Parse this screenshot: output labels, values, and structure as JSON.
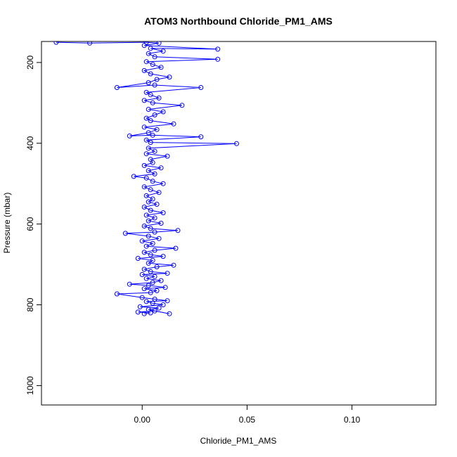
{
  "chart_data": {
    "type": "line",
    "title": "ATOM3 Northbound Chloride_PM1_AMS",
    "xlabel": "Chloride_PM1_AMS",
    "ylabel": "Pressure (mbar)",
    "xlim": [
      -0.048,
      0.14
    ],
    "ylim": [
      1048,
      148
    ],
    "y_reversed": true,
    "x_ticks": [
      0.0,
      0.05,
      0.1
    ],
    "x_tick_labels": [
      "0.00",
      "0.05",
      "0.10"
    ],
    "y_ticks": [
      200,
      400,
      600,
      800,
      1000
    ],
    "y_tick_labels": [
      "200",
      "400",
      "600",
      "800",
      "1000"
    ],
    "grid": false,
    "legend": "none",
    "marker": "open-circle",
    "series_color": "#0000ff",
    "series": [
      {
        "points": [
          [
            0.001,
            822
          ],
          [
            0.004,
            820
          ],
          [
            -0.002,
            818
          ],
          [
            0.006,
            815
          ],
          [
            0.013,
            822
          ],
          [
            0.003,
            812
          ],
          [
            0.008,
            808
          ],
          [
            -0.001,
            805
          ],
          [
            0.01,
            800
          ],
          [
            0.005,
            796
          ],
          [
            0.002,
            792
          ],
          [
            0.012,
            790
          ],
          [
            0.006,
            786
          ],
          [
            0.0,
            782
          ],
          [
            -0.012,
            773
          ],
          [
            0.004,
            770
          ],
          [
            0.007,
            765
          ],
          [
            0.001,
            760
          ],
          [
            0.011,
            757
          ],
          [
            0.003,
            752
          ],
          [
            -0.006,
            749
          ],
          [
            0.005,
            745
          ],
          [
            0.009,
            740
          ],
          [
            0.002,
            735
          ],
          [
            0.006,
            730
          ],
          [
            0.0,
            725
          ],
          [
            0.012,
            722
          ],
          [
            0.004,
            718
          ],
          [
            0.001,
            712
          ],
          [
            0.007,
            706
          ],
          [
            0.015,
            702
          ],
          [
            0.003,
            697
          ],
          [
            0.005,
            690
          ],
          [
            -0.002,
            685
          ],
          [
            0.01,
            680
          ],
          [
            0.004,
            676
          ],
          [
            0.001,
            670
          ],
          [
            0.006,
            665
          ],
          [
            0.016,
            660
          ],
          [
            0.002,
            655
          ],
          [
            0.005,
            648
          ],
          [
            0.0,
            642
          ],
          [
            0.008,
            636
          ],
          [
            0.003,
            630
          ],
          [
            -0.008,
            623
          ],
          [
            0.006,
            620
          ],
          [
            0.017,
            616
          ],
          [
            0.004,
            611
          ],
          [
            0.001,
            605
          ],
          [
            0.009,
            598
          ],
          [
            0.003,
            592
          ],
          [
            0.006,
            585
          ],
          [
            0.002,
            578
          ],
          [
            0.01,
            572
          ],
          [
            0.004,
            566
          ],
          [
            0.001,
            558
          ],
          [
            0.007,
            551
          ],
          [
            0.003,
            545
          ],
          [
            0.005,
            538
          ],
          [
            0.002,
            530
          ],
          [
            0.008,
            522
          ],
          [
            0.004,
            515
          ],
          [
            0.001,
            508
          ],
          [
            0.01,
            500
          ],
          [
            0.005,
            494
          ],
          [
            0.002,
            486
          ],
          [
            -0.004,
            482
          ],
          [
            0.006,
            476
          ],
          [
            0.003,
            468
          ],
          [
            0.009,
            461
          ],
          [
            0.001,
            455
          ],
          [
            0.005,
            448
          ],
          [
            0.004,
            440
          ],
          [
            0.012,
            432
          ],
          [
            0.002,
            426
          ],
          [
            0.006,
            420
          ],
          [
            0.003,
            412
          ],
          [
            0.045,
            401
          ],
          [
            0.004,
            398
          ],
          [
            0.002,
            392
          ],
          [
            0.028,
            384
          ],
          [
            0.005,
            380
          ],
          [
            -0.006,
            382
          ],
          [
            0.003,
            374
          ],
          [
            0.007,
            366
          ],
          [
            0.001,
            360
          ],
          [
            0.015,
            352
          ],
          [
            0.004,
            344
          ],
          [
            0.002,
            338
          ],
          [
            0.006,
            330
          ],
          [
            0.01,
            322
          ],
          [
            0.003,
            316
          ],
          [
            0.019,
            306
          ],
          [
            0.005,
            300
          ],
          [
            0.001,
            294
          ],
          [
            0.008,
            288
          ],
          [
            0.004,
            280
          ],
          [
            0.002,
            274
          ],
          [
            0.028,
            262
          ],
          [
            0.006,
            256
          ],
          [
            -0.012,
            262
          ],
          [
            0.003,
            250
          ],
          [
            0.007,
            242
          ],
          [
            0.013,
            236
          ],
          [
            0.004,
            228
          ],
          [
            0.001,
            220
          ],
          [
            0.009,
            212
          ],
          [
            0.005,
            205
          ],
          [
            0.002,
            198
          ],
          [
            0.036,
            192
          ],
          [
            0.006,
            186
          ],
          [
            0.003,
            178
          ],
          [
            0.01,
            172
          ],
          [
            0.004,
            165
          ],
          [
            0.036,
            167
          ],
          [
            0.001,
            158
          ],
          [
            0.008,
            152
          ],
          [
            0.002,
            150
          ],
          [
            -0.025,
            152
          ],
          [
            -0.041,
            150
          ]
        ]
      }
    ]
  }
}
